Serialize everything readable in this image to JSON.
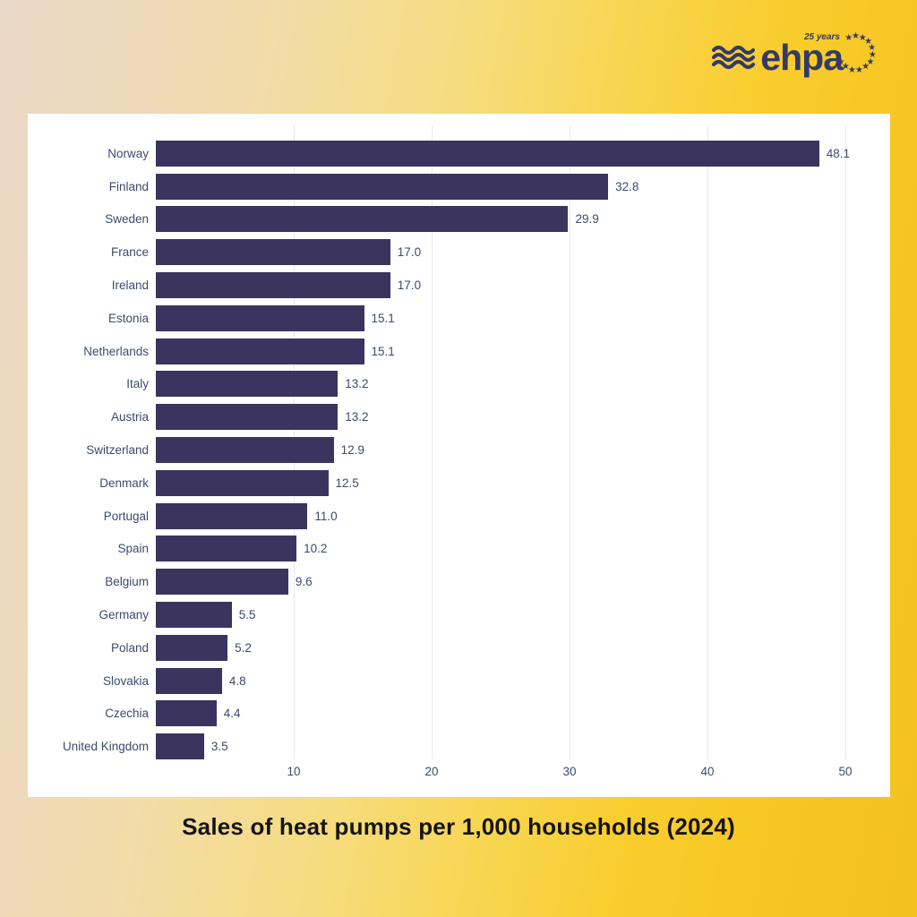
{
  "logo": {
    "brand": "ehpa",
    "anniversary": "25 years",
    "color": "#333a66"
  },
  "chart_data": {
    "type": "bar",
    "orientation": "horizontal",
    "title": "Sales of heat pumps per 1,000 households (2024)",
    "categories": [
      "Norway",
      "Finland",
      "Sweden",
      "France",
      "Ireland",
      "Estonia",
      "Netherlands",
      "Italy",
      "Austria",
      "Switzerland",
      "Denmark",
      "Portugal",
      "Spain",
      "Belgium",
      "Germany",
      "Poland",
      "Slovakia",
      "Czechia",
      "United Kingdom"
    ],
    "values": [
      48.1,
      32.8,
      29.9,
      17.0,
      17.0,
      15.1,
      15.1,
      13.2,
      13.2,
      12.9,
      12.5,
      11.0,
      10.2,
      9.6,
      5.5,
      5.2,
      4.8,
      4.4,
      3.5
    ],
    "value_labels": [
      "48.1",
      "32.8",
      "29.9",
      "17.0",
      "17.0",
      "15.1",
      "15.1",
      "13.2",
      "13.2",
      "12.9",
      "12.5",
      "11.0",
      "10.2",
      "9.6",
      "5.5",
      "5.2",
      "4.8",
      "4.4",
      "3.5"
    ],
    "xticks": [
      10,
      20,
      30,
      40,
      50
    ],
    "xlim": [
      0,
      53
    ],
    "grid": true,
    "legend_position": "none"
  },
  "colors": {
    "bar": "#3a345f",
    "category_label": "#3e4a6e",
    "value_label": "#3e4a6e",
    "tick_label": "#3e4a6e",
    "gridline": "#e9e9ef",
    "panel": "#ffffff",
    "title": "#151515",
    "logo": "#333a66",
    "background_left": "#e9d8c5",
    "background_right": "#f4c11e"
  }
}
